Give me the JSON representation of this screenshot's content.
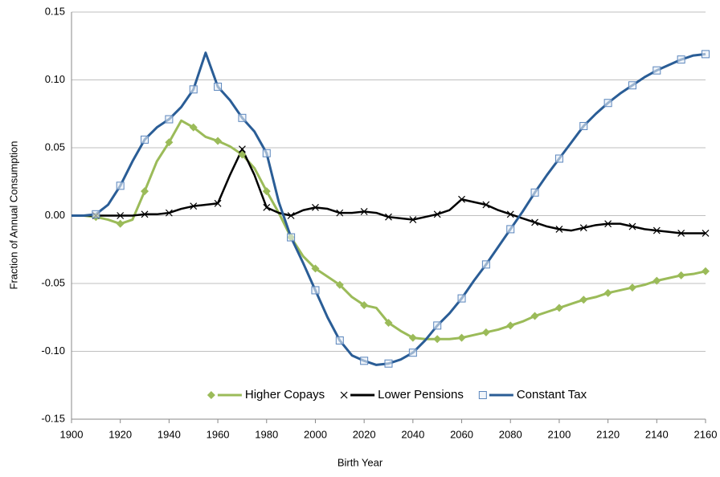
{
  "chart_data": {
    "type": "line",
    "x_label": "Birth Year",
    "y_label": "Fraction of Annual Consumption",
    "x": [
      1900,
      1905,
      1910,
      1915,
      1920,
      1925,
      1930,
      1935,
      1940,
      1945,
      1950,
      1955,
      1960,
      1965,
      1970,
      1975,
      1980,
      1985,
      1990,
      1995,
      2000,
      2005,
      2010,
      2015,
      2020,
      2025,
      2030,
      2035,
      2040,
      2045,
      2050,
      2055,
      2060,
      2065,
      2070,
      2075,
      2080,
      2085,
      2090,
      2095,
      2100,
      2105,
      2110,
      2115,
      2120,
      2125,
      2130,
      2135,
      2140,
      2145,
      2150,
      2155,
      2160
    ],
    "series": [
      {
        "name": "Higher Copays",
        "color": "#9bbb59",
        "marker": "diamond",
        "values": [
          0,
          0,
          -0.001,
          -0.003,
          -0.006,
          -0.003,
          0.018,
          0.04,
          0.054,
          0.07,
          0.065,
          0.058,
          0.055,
          0.051,
          0.045,
          0.035,
          0.018,
          0.002,
          -0.016,
          -0.03,
          -0.039,
          -0.045,
          -0.051,
          -0.06,
          -0.066,
          -0.068,
          -0.079,
          -0.085,
          -0.09,
          -0.091,
          -0.091,
          -0.091,
          -0.09,
          -0.088,
          -0.086,
          -0.084,
          -0.081,
          -0.078,
          -0.074,
          -0.071,
          -0.068,
          -0.065,
          -0.062,
          -0.06,
          -0.057,
          -0.055,
          -0.053,
          -0.051,
          -0.048,
          -0.046,
          -0.044,
          -0.043,
          -0.041
        ]
      },
      {
        "name": "Lower Pensions",
        "color": "#000000",
        "marker": "x",
        "values": [
          0,
          0,
          0,
          0,
          0,
          0,
          0.001,
          0.001,
          0.002,
          0.005,
          0.007,
          0.008,
          0.009,
          0.03,
          0.049,
          0.03,
          0.006,
          0.002,
          0.0,
          0.004,
          0.006,
          0.005,
          0.002,
          0.002,
          0.003,
          0.002,
          -0.001,
          -0.002,
          -0.003,
          -0.001,
          0.001,
          0.004,
          0.012,
          0.01,
          0.008,
          0.004,
          0.001,
          -0.002,
          -0.005,
          -0.008,
          -0.01,
          -0.011,
          -0.009,
          -0.007,
          -0.006,
          -0.006,
          -0.008,
          -0.01,
          -0.011,
          -0.012,
          -0.013,
          -0.013,
          -0.013
        ]
      },
      {
        "name": "Constant Tax",
        "color": "#2a5d96",
        "marker": "square",
        "values": [
          0,
          0,
          0.001,
          0.008,
          0.022,
          0.04,
          0.056,
          0.065,
          0.071,
          0.08,
          0.093,
          0.12,
          0.095,
          0.085,
          0.072,
          0.062,
          0.046,
          0.01,
          -0.016,
          -0.035,
          -0.055,
          -0.075,
          -0.092,
          -0.103,
          -0.107,
          -0.11,
          -0.109,
          -0.106,
          -0.101,
          -0.092,
          -0.081,
          -0.072,
          -0.061,
          -0.048,
          -0.036,
          -0.023,
          -0.01,
          0.003,
          0.017,
          0.03,
          0.042,
          0.054,
          0.066,
          0.075,
          0.083,
          0.09,
          0.096,
          0.102,
          0.107,
          0.111,
          0.115,
          0.118,
          0.119
        ]
      }
    ],
    "xlim": [
      1900,
      2160
    ],
    "xticks": [
      1900,
      1920,
      1940,
      1960,
      1980,
      2000,
      2020,
      2040,
      2060,
      2080,
      2100,
      2120,
      2140,
      2160
    ],
    "ylim": [
      -0.15,
      0.15
    ],
    "yticks": [
      -0.15,
      {
        "value": -0.1,
        "label": "-0.10"
      },
      -0.05,
      {
        "value": 0,
        "label": "0.00"
      },
      0.05,
      {
        "value": 0.1,
        "label": "0.10"
      },
      0.15
    ],
    "grid": true,
    "legend": "bottom"
  }
}
